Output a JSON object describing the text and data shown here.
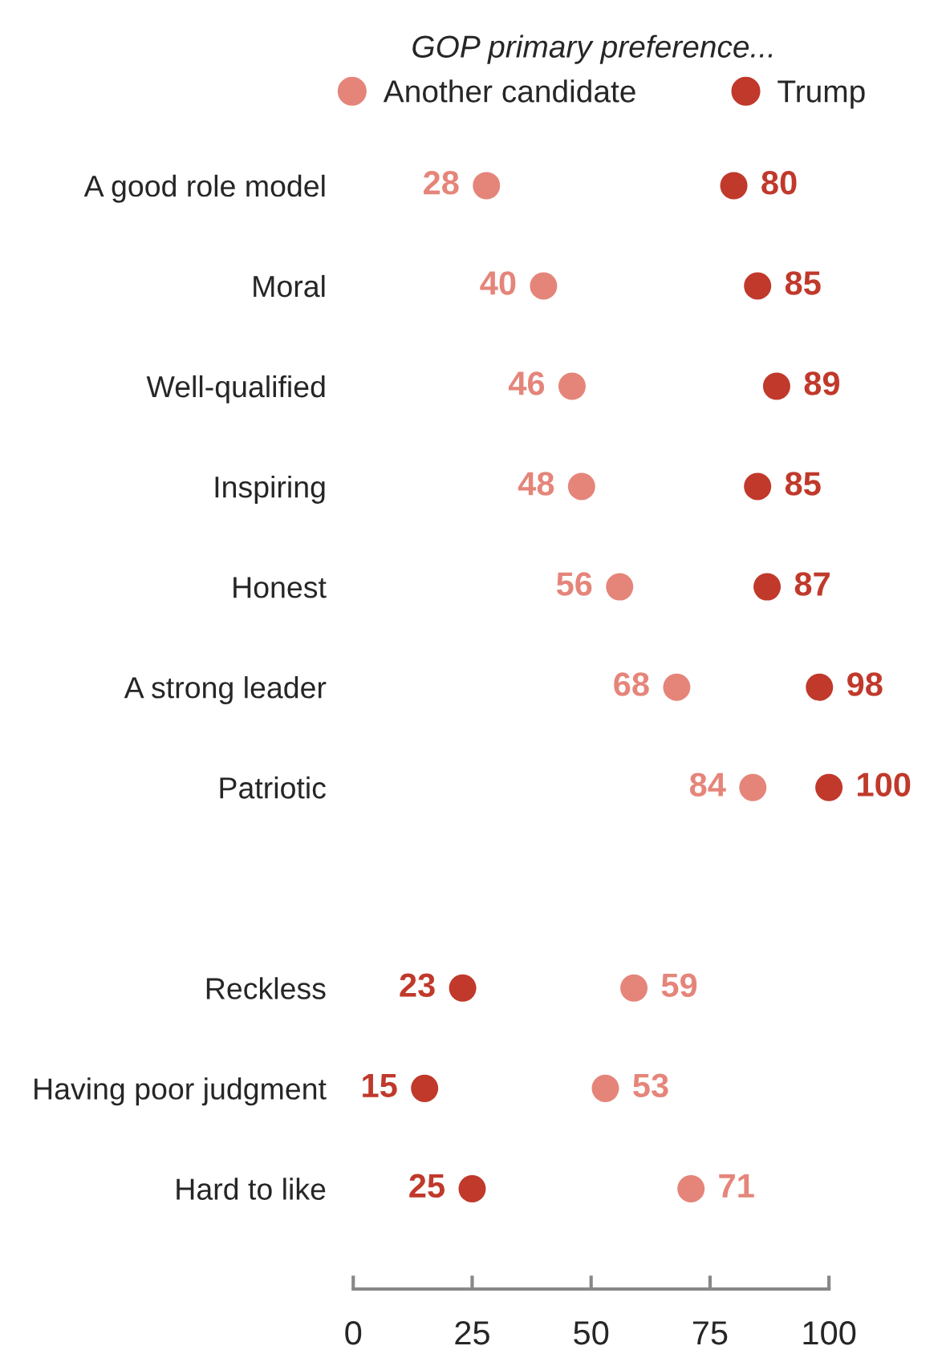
{
  "chart_data": {
    "type": "scatter",
    "orientation": "horizontal",
    "legend_title": "GOP primary preference...",
    "categories": [
      "A good role model",
      "Moral",
      "Well-qualified",
      "Inspiring",
      "Honest",
      "A strong leader",
      "Patriotic",
      null,
      "Reckless",
      "Having poor judgment",
      "Hard to like"
    ],
    "series": [
      {
        "name": "Another candidate",
        "color": "#e5857a",
        "values": [
          28,
          40,
          46,
          48,
          56,
          68,
          84,
          null,
          59,
          53,
          71
        ]
      },
      {
        "name": "Trump",
        "color": "#c0392b",
        "values": [
          80,
          85,
          89,
          85,
          87,
          98,
          100,
          null,
          23,
          15,
          25
        ]
      }
    ],
    "xlim": [
      0,
      100
    ],
    "xticks": [
      0,
      25,
      50,
      75,
      100
    ],
    "data_labels": true,
    "legend": "top",
    "marker": "circle",
    "grid": false
  }
}
